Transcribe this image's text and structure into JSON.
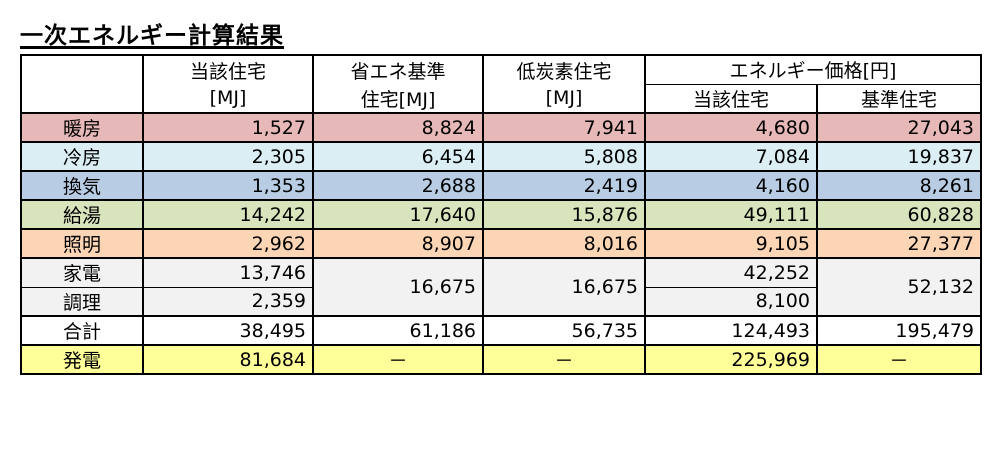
{
  "title": "一次エネルギー計算結果",
  "headers": {
    "col1_a": "当該住宅",
    "col1_b": "[MJ]",
    "col2_a": "省エネ基準",
    "col2_b": "住宅[MJ]",
    "col3_a": "低炭素住宅",
    "col3_b": "[MJ]",
    "price_group": "エネルギー価格[円]",
    "price_a": "当該住宅",
    "price_b": "基準住宅"
  },
  "colors": {
    "heating": "#e6b8b7",
    "cooling": "#daeef3",
    "ventilation": "#b8cce4",
    "hotwater": "#d8e4bc",
    "lighting": "#fcd5b4",
    "appliances": "#f2f2f2",
    "total": "#ffffff",
    "generation": "#ffff99"
  },
  "rows": {
    "heating": {
      "label": "暖房",
      "mj": "1,527",
      "std": "8,824",
      "low": "7,941",
      "pa": "4,680",
      "pb": "27,043"
    },
    "cooling": {
      "label": "冷房",
      "mj": "2,305",
      "std": "6,454",
      "low": "5,808",
      "pa": "7,084",
      "pb": "19,837"
    },
    "ventilation": {
      "label": "換気",
      "mj": "1,353",
      "std": "2,688",
      "low": "2,419",
      "pa": "4,160",
      "pb": "8,261"
    },
    "hotwater": {
      "label": "給湯",
      "mj": "14,242",
      "std": "17,640",
      "low": "15,876",
      "pa": "49,111",
      "pb": "60,828"
    },
    "lighting": {
      "label": "照明",
      "mj": "2,962",
      "std": "8,907",
      "low": "8,016",
      "pa": "9,105",
      "pb": "27,377"
    },
    "appliances": {
      "label": "家電",
      "mj": "13,746",
      "pa": "42,252"
    },
    "cooking": {
      "label": "調理",
      "mj": "2,359",
      "pa": "8,100"
    },
    "appliances_cooking": {
      "std": "16,675",
      "low": "16,675",
      "pb": "52,132"
    },
    "total": {
      "label": "合計",
      "mj": "38,495",
      "std": "61,186",
      "low": "56,735",
      "pa": "124,493",
      "pb": "195,479"
    },
    "generation": {
      "label": "発電",
      "mj": "81,684",
      "std": "－",
      "low": "－",
      "pa": "225,969",
      "pb": "－"
    }
  }
}
